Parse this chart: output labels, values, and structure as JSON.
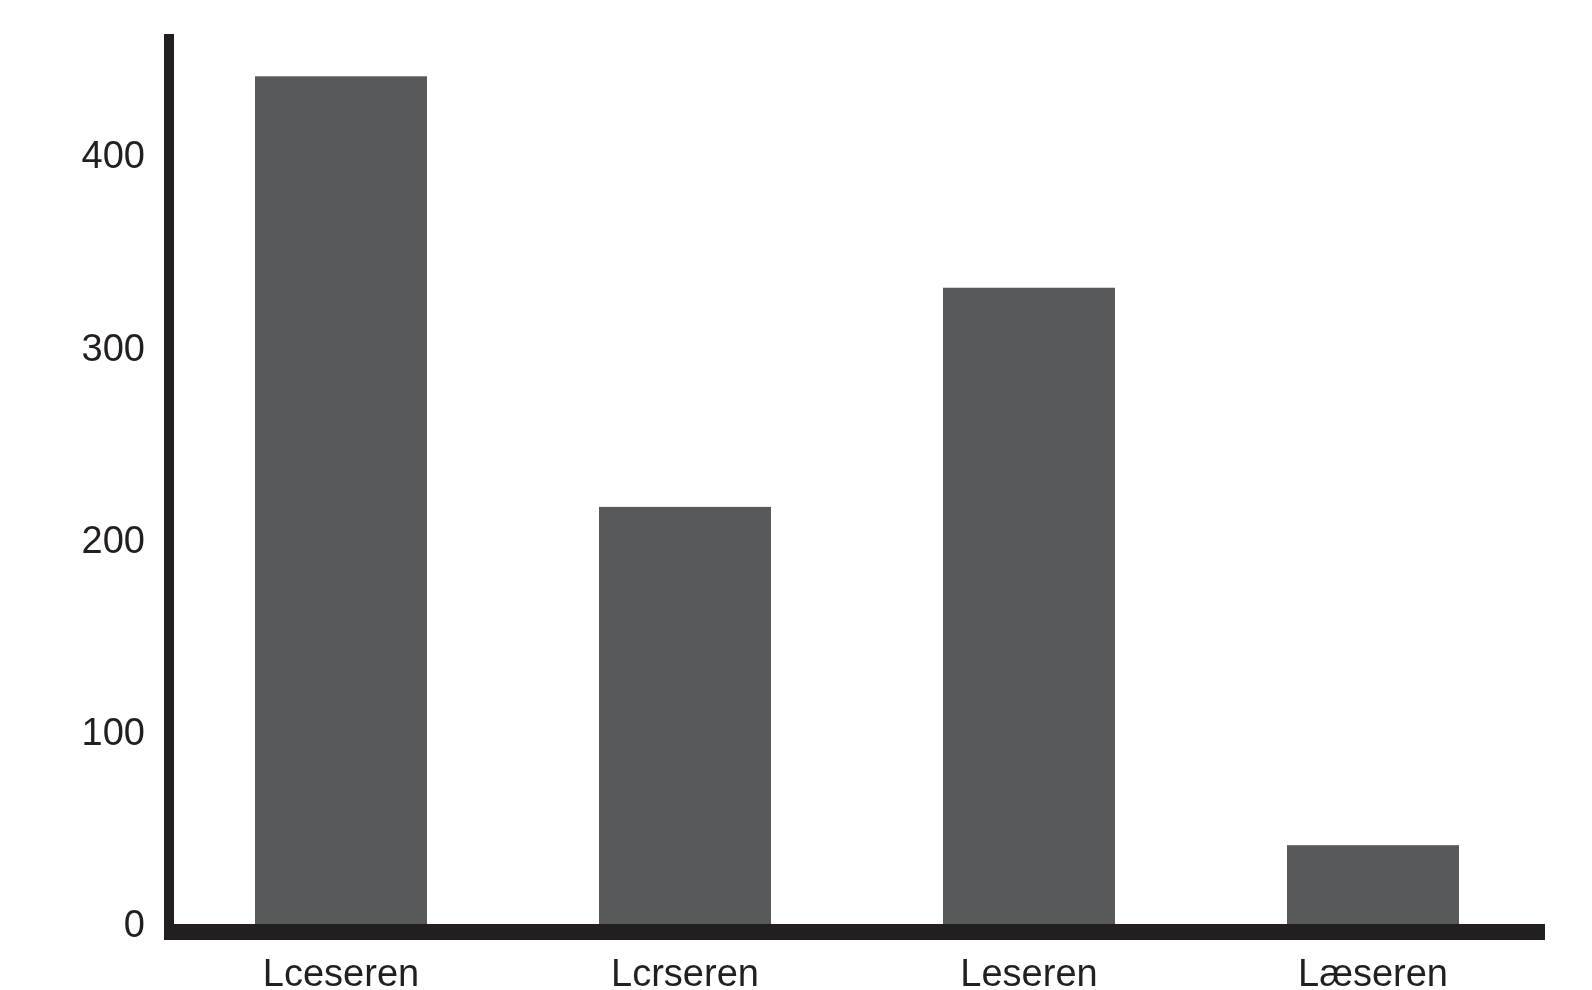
{
  "chart_data": {
    "type": "bar",
    "categories": [
      "Lceseren",
      "Lcrseren",
      "Leseren",
      "Læseren"
    ],
    "values": [
      441,
      217,
      331,
      41
    ],
    "color": "#58595b",
    "ylim": [
      0,
      463
    ],
    "yticks": [
      0,
      100,
      200,
      300,
      400
    ],
    "grid": false
  }
}
